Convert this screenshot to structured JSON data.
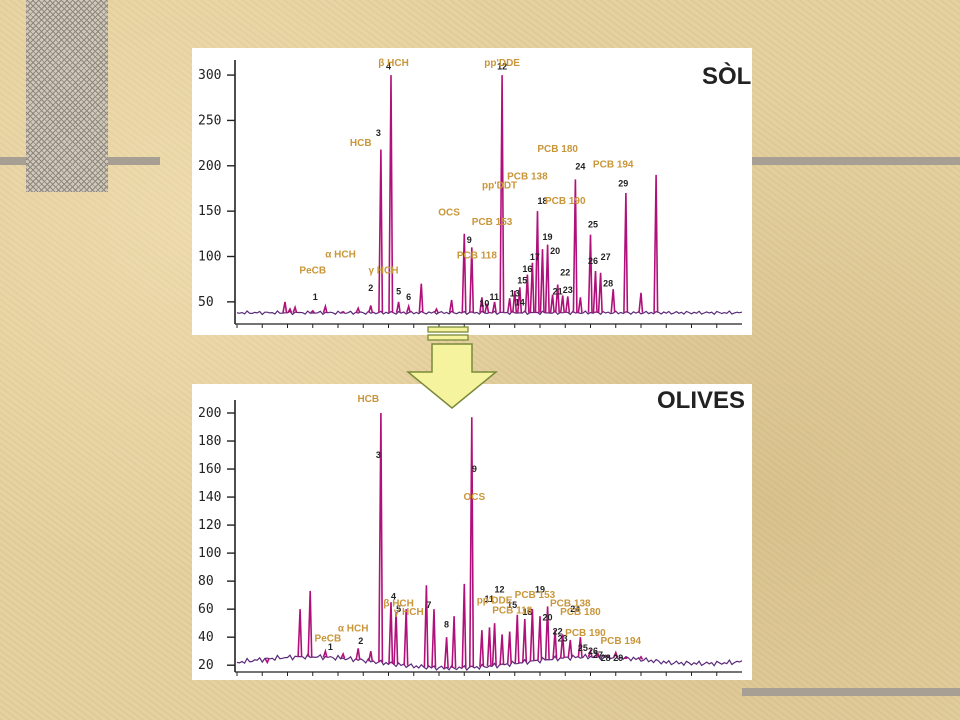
{
  "chart_data": [
    {
      "type": "line",
      "title": "SÒL",
      "y_ticks": [
        300,
        250,
        200,
        150,
        100,
        50
      ],
      "ylim": [
        30,
        310
      ],
      "xlim": [
        0,
        100
      ],
      "peaks": [
        {
          "x": 9.5,
          "y": 50
        },
        {
          "x": 10.5,
          "y": 42
        },
        {
          "x": 11.5,
          "y": 44
        },
        {
          "x": 15,
          "y": 40
        },
        {
          "x": 17.5,
          "y": 45
        },
        {
          "x": 21,
          "y": 39
        },
        {
          "x": 24,
          "y": 43
        },
        {
          "x": 26.5,
          "y": 46
        },
        {
          "x": 28.5,
          "y": 218
        },
        {
          "x": 30.5,
          "y": 300
        },
        {
          "x": 32,
          "y": 50
        },
        {
          "x": 34,
          "y": 45
        },
        {
          "x": 36.5,
          "y": 70
        },
        {
          "x": 39.5,
          "y": 42
        },
        {
          "x": 42.5,
          "y": 52
        },
        {
          "x": 45,
          "y": 125
        },
        {
          "x": 46.5,
          "y": 110
        },
        {
          "x": 48.5,
          "y": 55
        },
        {
          "x": 49.5,
          "y": 48
        },
        {
          "x": 51,
          "y": 50
        },
        {
          "x": 52.5,
          "y": 300
        },
        {
          "x": 54,
          "y": 54
        },
        {
          "x": 55,
          "y": 62
        },
        {
          "x": 56,
          "y": 66
        },
        {
          "x": 57.5,
          "y": 80
        },
        {
          "x": 58.5,
          "y": 93
        },
        {
          "x": 59.5,
          "y": 150
        },
        {
          "x": 60.5,
          "y": 108
        },
        {
          "x": 61.5,
          "y": 113
        },
        {
          "x": 62.5,
          "y": 58
        },
        {
          "x": 63.5,
          "y": 69
        },
        {
          "x": 64.5,
          "y": 57
        },
        {
          "x": 65.5,
          "y": 56
        },
        {
          "x": 67,
          "y": 185
        },
        {
          "x": 68,
          "y": 55
        },
        {
          "x": 70,
          "y": 124
        },
        {
          "x": 71,
          "y": 84
        },
        {
          "x": 72,
          "y": 82
        },
        {
          "x": 74.5,
          "y": 64
        },
        {
          "x": 77,
          "y": 170
        },
        {
          "x": 80,
          "y": 60
        },
        {
          "x": 83,
          "y": 190
        }
      ],
      "labels": [
        {
          "text": "β  HCH",
          "x": 31,
          "y": 310
        },
        {
          "text": "pp'DDE",
          "x": 52.5,
          "y": 310
        },
        {
          "text": "HCB",
          "x": 24.5,
          "y": 222
        },
        {
          "text": "PCB 180",
          "x": 63.5,
          "y": 215
        },
        {
          "text": "PCB 194",
          "x": 74.5,
          "y": 198
        },
        {
          "text": "PCB 138",
          "x": 57.5,
          "y": 185
        },
        {
          "text": "pp'DDT",
          "x": 52,
          "y": 175
        },
        {
          "text": "PCB 190",
          "x": 65,
          "y": 158
        },
        {
          "text": "OCS",
          "x": 42,
          "y": 145
        },
        {
          "text": "PCB 153",
          "x": 50.5,
          "y": 135
        },
        {
          "text": "α  HCH",
          "x": 20.5,
          "y": 99
        },
        {
          "text": "PCB 118",
          "x": 47.5,
          "y": 98
        },
        {
          "text": "PeCB",
          "x": 15,
          "y": 81
        },
        {
          "text": "γ  HCH",
          "x": 29,
          "y": 81
        }
      ],
      "peak_numbers": [
        "1",
        "2",
        "3",
        "4",
        "5",
        "6",
        "9",
        "10",
        "11",
        "12",
        "13",
        "14",
        "15",
        "16",
        "17",
        "18",
        "19",
        "20",
        "21",
        "22",
        "23",
        "24",
        "25",
        "26",
        "27",
        "28",
        "29"
      ]
    },
    {
      "type": "line",
      "title": "OLIVES",
      "y_ticks": [
        200,
        180,
        160,
        140,
        120,
        100,
        80,
        60,
        40,
        20
      ],
      "ylim": [
        18,
        205
      ],
      "xlim": [
        0,
        100
      ],
      "peaks": [
        {
          "x": 6,
          "y": 22
        },
        {
          "x": 12.5,
          "y": 60
        },
        {
          "x": 14.5,
          "y": 73
        },
        {
          "x": 17.5,
          "y": 30
        },
        {
          "x": 21,
          "y": 28
        },
        {
          "x": 24,
          "y": 32
        },
        {
          "x": 26.5,
          "y": 30
        },
        {
          "x": 28.5,
          "y": 200
        },
        {
          "x": 30.5,
          "y": 65
        },
        {
          "x": 31.5,
          "y": 58
        },
        {
          "x": 33.5,
          "y": 60
        },
        {
          "x": 37.5,
          "y": 77
        },
        {
          "x": 39,
          "y": 60
        },
        {
          "x": 41.5,
          "y": 40
        },
        {
          "x": 43,
          "y": 55
        },
        {
          "x": 45,
          "y": 78
        },
        {
          "x": 46.5,
          "y": 197
        },
        {
          "x": 48.5,
          "y": 45
        },
        {
          "x": 50,
          "y": 47
        },
        {
          "x": 51,
          "y": 50
        },
        {
          "x": 52.5,
          "y": 42
        },
        {
          "x": 54,
          "y": 44
        },
        {
          "x": 55.5,
          "y": 56
        },
        {
          "x": 57,
          "y": 53
        },
        {
          "x": 58.5,
          "y": 60
        },
        {
          "x": 60,
          "y": 55
        },
        {
          "x": 61.5,
          "y": 62
        },
        {
          "x": 63,
          "y": 45
        },
        {
          "x": 64.5,
          "y": 42
        },
        {
          "x": 66,
          "y": 38
        },
        {
          "x": 68,
          "y": 40
        },
        {
          "x": 70,
          "y": 30
        },
        {
          "x": 71.5,
          "y": 28
        },
        {
          "x": 73,
          "y": 27
        },
        {
          "x": 75,
          "y": 29
        },
        {
          "x": 77,
          "y": 25
        },
        {
          "x": 80,
          "y": 26
        }
      ],
      "labels": [
        {
          "text": "HCB",
          "x": 26,
          "y": 208
        },
        {
          "text": "OCS",
          "x": 47,
          "y": 138
        },
        {
          "text": "PCB 153",
          "x": 59,
          "y": 68
        },
        {
          "text": "pp'DDE",
          "x": 51,
          "y": 64
        },
        {
          "text": "β  HCH",
          "x": 32,
          "y": 62
        },
        {
          "text": "PCB 138",
          "x": 66,
          "y": 62
        },
        {
          "text": "γ  HCH",
          "x": 34,
          "y": 56
        },
        {
          "text": "PCB 118",
          "x": 54.5,
          "y": 57
        },
        {
          "text": "PCB 180",
          "x": 68,
          "y": 56
        },
        {
          "text": "α  HCH",
          "x": 23,
          "y": 44
        },
        {
          "text": "PCB 190",
          "x": 69,
          "y": 41
        },
        {
          "text": "PeCB",
          "x": 18,
          "y": 37
        },
        {
          "text": "PCB 194",
          "x": 76,
          "y": 35
        }
      ],
      "peak_numbers": [
        "1",
        "2",
        "3",
        "4",
        "5",
        "7",
        "8",
        "9",
        "11",
        "12",
        "15",
        "18",
        "19",
        "20",
        "22",
        "23",
        "24",
        "25",
        "26",
        "27",
        "28",
        "29"
      ]
    }
  ],
  "arrow": {
    "color": "#f6f39e",
    "stroke": "#7a8a3a"
  },
  "colors": {
    "trace": "#5a2a7a",
    "peak": "#b0107a",
    "label": "#c9963a"
  }
}
